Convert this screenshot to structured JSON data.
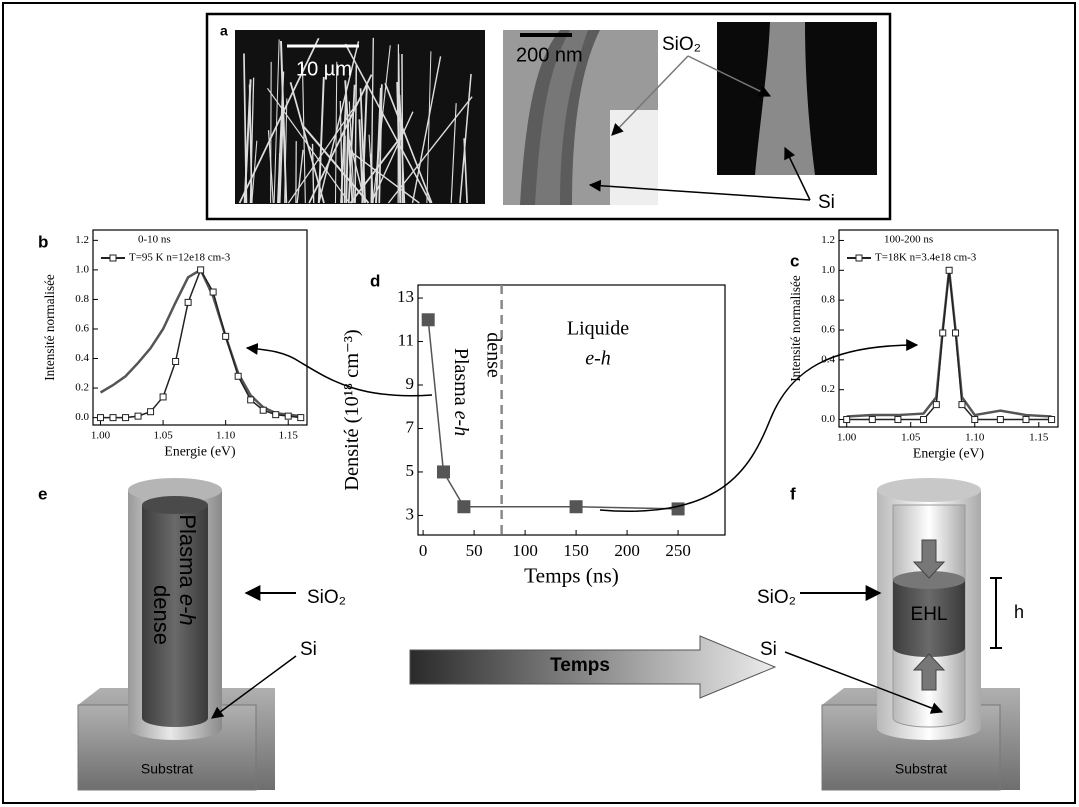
{
  "figure": {
    "a": {
      "label": "a",
      "scale_1": "10 µm",
      "scale_2": "200 nm",
      "oxide": "SiO₂",
      "core": "Si"
    },
    "e": {
      "label": "e",
      "plasma": "Plasma",
      "eh": "e-h",
      "dense": "dense",
      "oxide": "SiO₂",
      "core": "Si",
      "substrate": "Substrat"
    },
    "f": {
      "label": "f",
      "oxide": "SiO₂",
      "core": "Si",
      "ehl": "EHL",
      "height": "h",
      "substrate": "Substrat"
    },
    "arrow": "Temps"
  },
  "chart_data": [
    {
      "type": "line",
      "panel_label": "b",
      "title": "0-10 ns",
      "xlabel": "Energie (eV)",
      "ylabel": "Intensité normalisée",
      "x": [
        1.0,
        1.01,
        1.02,
        1.03,
        1.04,
        1.05,
        1.06,
        1.07,
        1.08,
        1.09,
        1.1,
        1.11,
        1.12,
        1.13,
        1.14,
        1.15,
        1.16
      ],
      "series": [
        {
          "color": "#555555",
          "values": [
            0.17,
            0.22,
            0.28,
            0.37,
            0.47,
            0.6,
            0.78,
            0.95,
            1.0,
            0.82,
            0.55,
            0.3,
            0.15,
            0.07,
            0.03,
            0.02,
            0.01
          ]
        },
        {
          "name": "T=95 K n=12e18 cm-3",
          "color": "#222222",
          "marker": "square",
          "values": [
            0,
            0,
            0,
            0.01,
            0.04,
            0.14,
            0.38,
            0.78,
            1.0,
            0.85,
            0.55,
            0.28,
            0.12,
            0.05,
            0.02,
            0.01,
            0
          ]
        }
      ],
      "xlim": [
        0.994,
        1.165
      ],
      "xticks": [
        {
          "value": 1.0,
          "label": "1.00"
        },
        1.05,
        {
          "value": 1.1,
          "label": "1.10"
        },
        1.15
      ],
      "ylim": [
        -0.05,
        1.27
      ],
      "yticks": [
        {
          "value": 0,
          "label": "0.0"
        },
        0.2,
        0.4,
        0.6,
        0.8,
        {
          "value": 1,
          "label": "1.0"
        },
        1.2
      ]
    },
    {
      "type": "line",
      "panel_label": "d",
      "xlabel": "Temps (ns)",
      "ylabel": "Densité (10¹⁸ cm⁻³)",
      "annotations": [
        "Plasma",
        "e-h",
        "dense",
        "Liquide",
        "e-h"
      ],
      "vline": 77,
      "x": [
        5,
        20,
        40,
        150,
        250
      ],
      "series": [
        {
          "color": "#555555",
          "marker": "filled-square",
          "values": [
            12,
            5,
            3.4,
            3.4,
            3.3
          ]
        }
      ],
      "xlim": [
        -5,
        296
      ],
      "xticks": [
        0,
        50,
        100,
        150,
        200,
        250
      ],
      "ylim": [
        2.1,
        13.6
      ],
      "yticks": [
        3,
        5,
        7,
        9,
        11,
        13
      ]
    },
    {
      "type": "line",
      "panel_label": "c",
      "title": "100-200 ns",
      "xlabel": "Energie (eV)",
      "ylabel": "Intensité normalisée",
      "x": [
        1.0,
        1.02,
        1.04,
        1.06,
        1.07,
        1.075,
        1.08,
        1.085,
        1.09,
        1.1,
        1.12,
        1.14,
        1.16
      ],
      "series": [
        {
          "color": "#555555",
          "values": [
            0.02,
            0.03,
            0.03,
            0.04,
            0.15,
            0.6,
            1.0,
            0.6,
            0.15,
            0.03,
            0.06,
            0.03,
            0.02
          ]
        },
        {
          "name": "T=18K n=3.4e18 cm-3",
          "color": "#222222",
          "marker": "square",
          "values": [
            0,
            0,
            0,
            0,
            0.1,
            0.58,
            1.0,
            0.58,
            0.1,
            0,
            0,
            0,
            0
          ]
        }
      ],
      "xlim": [
        0.994,
        1.165
      ],
      "xticks": [
        {
          "value": 1.0,
          "label": "1.00"
        },
        1.05,
        {
          "value": 1.1,
          "label": "1.10"
        },
        1.15
      ],
      "ylim": [
        -0.05,
        1.27
      ],
      "yticks": [
        {
          "value": 0,
          "label": "0.0"
        },
        0.2,
        0.4,
        0.6,
        0.8,
        {
          "value": 1,
          "label": "1.0"
        },
        1.2
      ]
    }
  ]
}
